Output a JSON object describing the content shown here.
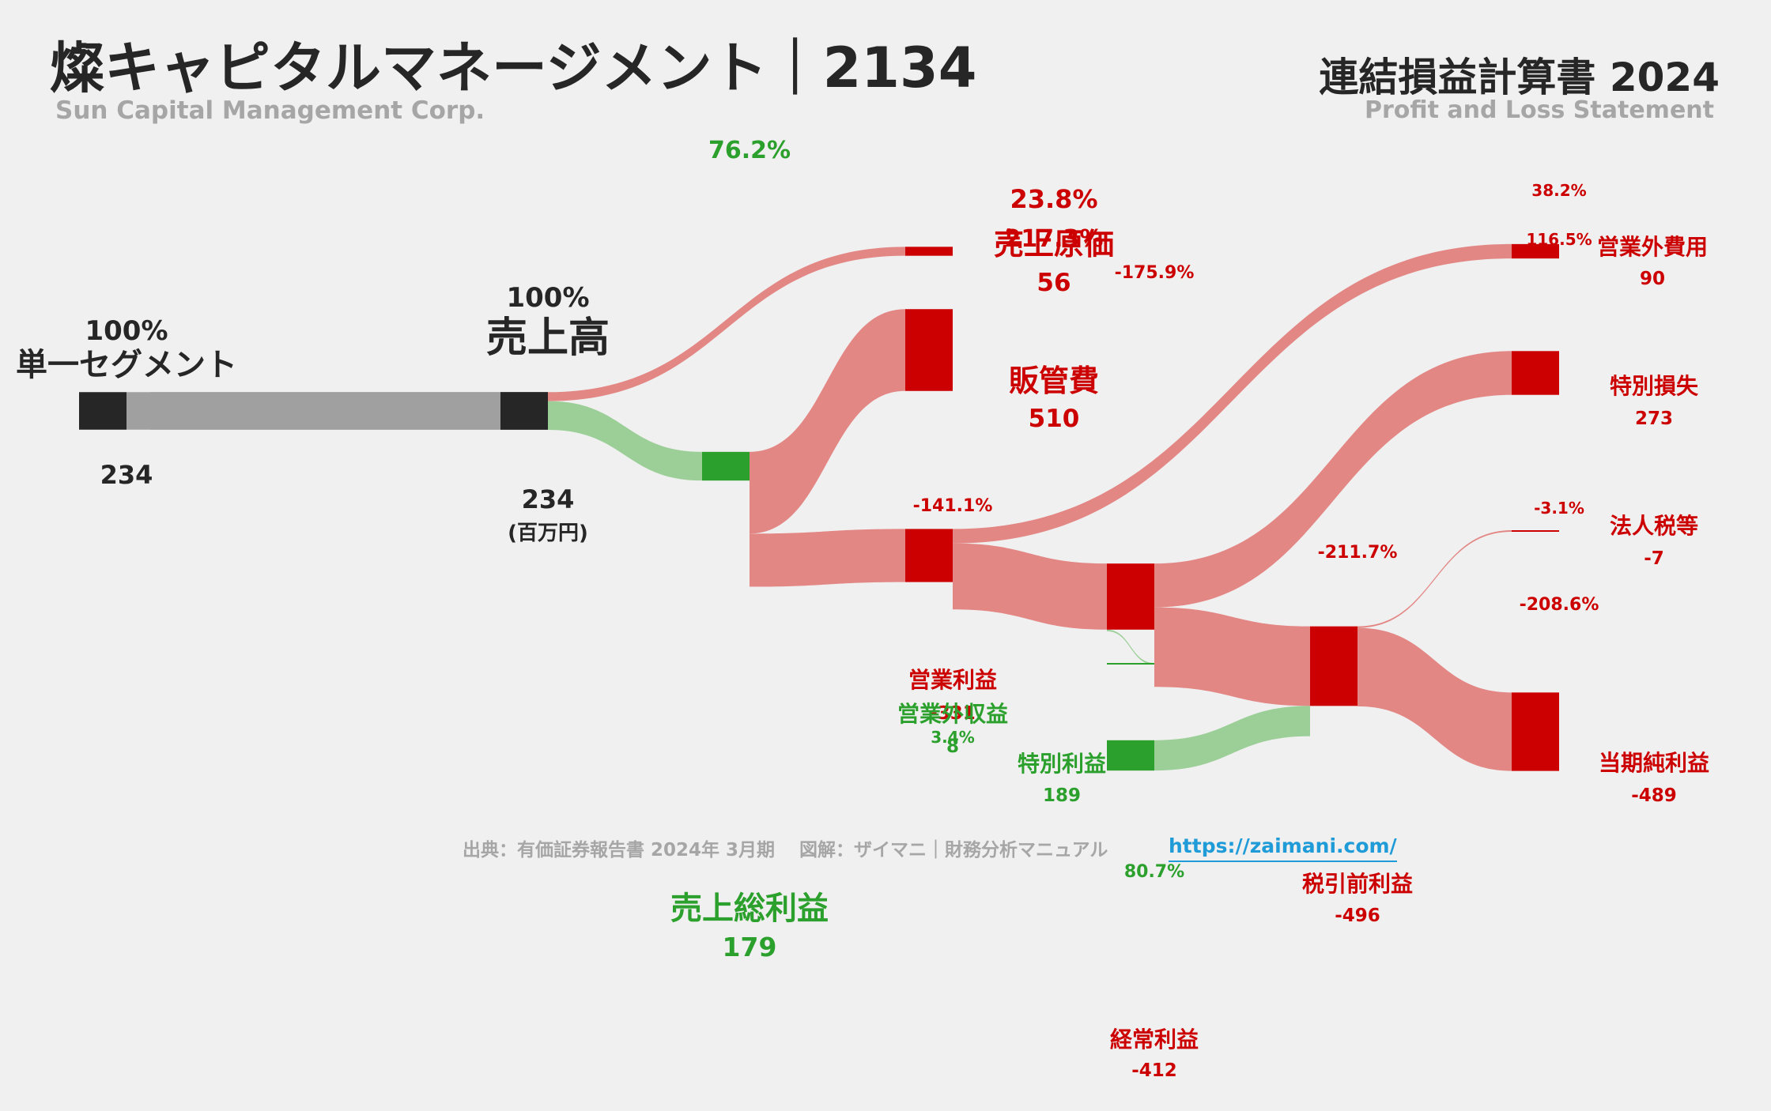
{
  "header": {
    "title": "燦キャピタルマネージメント｜2134",
    "subtitle": "Sun Capital Management Corp.",
    "statement_title": "連結損益計算書 2024",
    "statement_subtitle": "Profit and Loss Statement"
  },
  "footer": {
    "source": "出典：有価証券報告書 2024年 3月期　 図解：ザイマニ｜財務分析マニュアル",
    "link": "https://zaimani.com/"
  },
  "colors": {
    "dark": "#262626",
    "gray": "#a0a0a0",
    "green": "#2ca02c",
    "green_flow": "#9ccf98",
    "red": "#cc0000",
    "red_flow": "#e38785"
  },
  "chart_data": {
    "type": "sankey",
    "unit": "(百万円)",
    "nodes": [
      {
        "id": "segment",
        "label": "単一セグメント",
        "value": "234",
        "pct": "100%",
        "color": "dark"
      },
      {
        "id": "revenue",
        "label": "売上高",
        "value": "234",
        "pct": "100%",
        "color": "dark"
      },
      {
        "id": "cogs",
        "label": "売上原価",
        "value": "56",
        "pct": "23.8%",
        "color": "red"
      },
      {
        "id": "gross",
        "label": "売上総利益",
        "value": "179",
        "pct": "76.2%",
        "color": "green"
      },
      {
        "id": "sga",
        "label": "販管費",
        "value": "510",
        "pct": "217.3%",
        "color": "red"
      },
      {
        "id": "op",
        "label": "営業利益",
        "value": "-331",
        "pct": "-141.1%",
        "color": "red"
      },
      {
        "id": "nonop_inc",
        "label": "営業外収益",
        "value": "8",
        "pct": "3.4%",
        "color": "green"
      },
      {
        "id": "nonop_exp",
        "label": "営業外費用",
        "value": "90",
        "pct": "38.2%",
        "color": "red"
      },
      {
        "id": "ordinary",
        "label": "経常利益",
        "value": "-412",
        "pct": "-175.9%",
        "color": "red"
      },
      {
        "id": "sp_gain",
        "label": "特別利益",
        "value": "189",
        "pct": "80.7%",
        "color": "green"
      },
      {
        "id": "sp_loss",
        "label": "特別損失",
        "value": "273",
        "pct": "116.5%",
        "color": "red"
      },
      {
        "id": "pretax",
        "label": "税引前利益",
        "value": "-496",
        "pct": "-211.7%",
        "color": "red"
      },
      {
        "id": "tax",
        "label": "法人税等",
        "value": "-7",
        "pct": "-3.1%",
        "color": "red"
      },
      {
        "id": "net",
        "label": "当期純利益",
        "value": "-489",
        "pct": "-208.6%",
        "color": "red"
      }
    ],
    "links": [
      {
        "source": "segment",
        "target": "revenue",
        "value": 234
      },
      {
        "source": "revenue",
        "target": "cogs",
        "value": 56
      },
      {
        "source": "revenue",
        "target": "gross",
        "value": 179
      },
      {
        "source": "gross",
        "target": "sga",
        "value": 510
      },
      {
        "source": "gross",
        "target": "op",
        "value": 331
      },
      {
        "source": "op",
        "target": "nonop_exp",
        "value": 90
      },
      {
        "source": "op",
        "target": "ordinary",
        "value": 412
      },
      {
        "source": "nonop_inc",
        "target": "ordinary",
        "value": 8
      },
      {
        "source": "ordinary",
        "target": "sp_loss",
        "value": 273
      },
      {
        "source": "ordinary",
        "target": "pretax",
        "value": 496
      },
      {
        "source": "sp_gain",
        "target": "pretax",
        "value": 189
      },
      {
        "source": "pretax",
        "target": "tax",
        "value": 7
      },
      {
        "source": "pretax",
        "target": "net",
        "value": 489
      }
    ]
  }
}
